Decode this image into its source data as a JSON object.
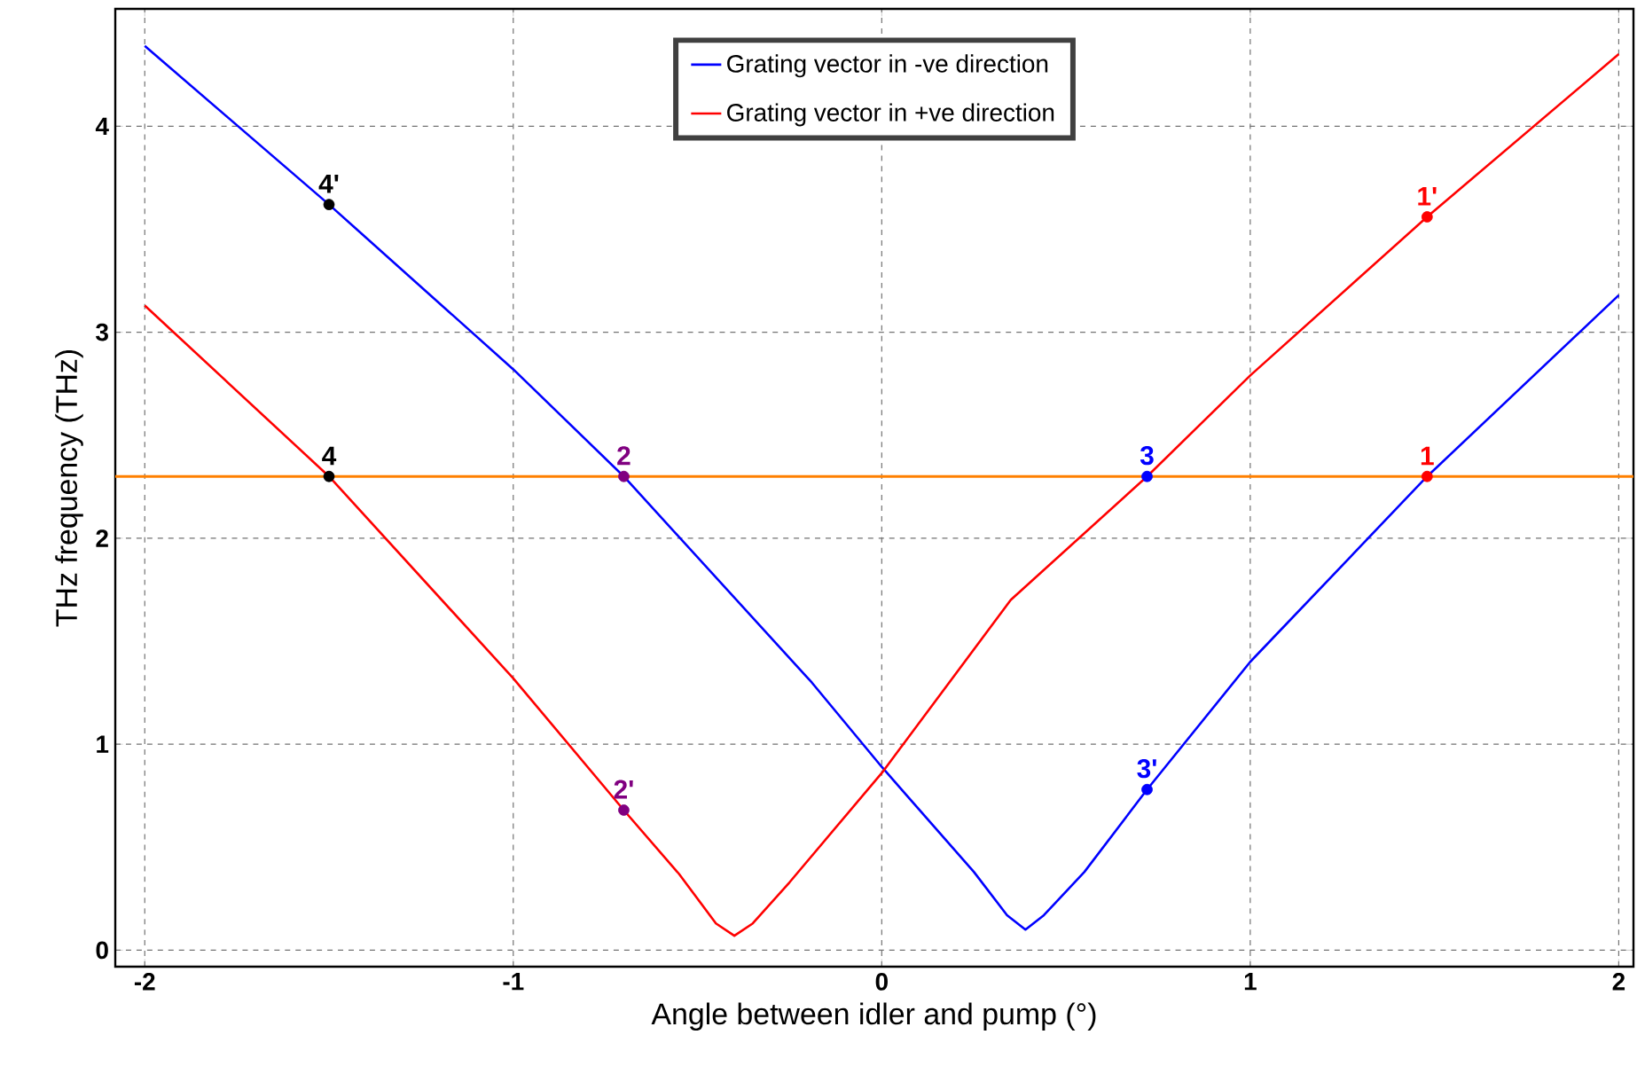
{
  "chart_data": {
    "type": "line",
    "xlabel": "Angle between idler and pump (°)",
    "ylabel": "THz frequency (THz)",
    "xlim": [
      -2.08,
      2.04
    ],
    "ylim": [
      -0.08,
      4.57
    ],
    "xticks": [
      -2,
      -1,
      0,
      1,
      2
    ],
    "yticks": [
      0,
      1,
      2,
      3,
      4
    ],
    "grid": true,
    "legend": "top",
    "series": [
      {
        "name": "Grating vector in -ve direction",
        "color": "#0000ff",
        "marker": "none",
        "x": [
          -2,
          -1.5,
          -1,
          -0.7,
          -0.19,
          0,
          0.25,
          0.34,
          0.39,
          0.44,
          0.55,
          0.72,
          1,
          1.48,
          2
        ],
        "values": [
          4.39,
          3.62,
          2.82,
          2.3,
          1.3,
          0.89,
          0.38,
          0.17,
          0.1,
          0.17,
          0.38,
          0.78,
          1.4,
          2.3,
          3.18
        ]
      },
      {
        "name": "Grating vector in +ve direction",
        "color": "#ff0000",
        "marker": "none",
        "x": [
          -2,
          -1.5,
          -1,
          -0.7,
          -0.55,
          -0.45,
          -0.4,
          -0.35,
          -0.25,
          0,
          0.35,
          0.72,
          1,
          1.48,
          2
        ],
        "values": [
          3.13,
          2.3,
          1.32,
          0.68,
          0.37,
          0.13,
          0.07,
          0.13,
          0.33,
          0.86,
          1.7,
          2.3,
          2.79,
          3.56,
          4.35
        ]
      },
      {
        "type": "scatter",
        "color": "#000000",
        "marker": "circle",
        "x": [
          -1.5,
          -1.5
        ],
        "values": [
          3.62,
          2.3
        ]
      },
      {
        "type": "scatter",
        "color": "#800080",
        "marker": "circle",
        "x": [
          -0.7,
          -0.7
        ],
        "values": [
          2.3,
          0.68
        ]
      },
      {
        "type": "scatter",
        "color": "#0000ff",
        "marker": "circle",
        "x": [
          0.72,
          0.72
        ],
        "values": [
          2.3,
          0.78
        ]
      },
      {
        "type": "scatter",
        "color": "#ff0000",
        "marker": "circle",
        "x": [
          1.48,
          1.48
        ],
        "values": [
          2.3,
          3.56
        ]
      }
    ],
    "annotations": [
      {
        "text": "4'",
        "x": -1.5,
        "y": 3.62
      },
      {
        "text": "4",
        "x": -1.5,
        "y": 2.3
      },
      {
        "text": "2",
        "x": -0.7,
        "y": 2.3
      },
      {
        "text": "2'",
        "x": -0.7,
        "y": 0.68
      },
      {
        "text": "3",
        "x": 0.72,
        "y": 2.3
      },
      {
        "text": "3'",
        "x": 0.72,
        "y": 0.78
      },
      {
        "text": "1",
        "x": 1.48,
        "y": 2.3
      },
      {
        "text": "1'",
        "x": 1.48,
        "y": 3.56
      }
    ],
    "ref_lines": [
      {
        "axis": "y",
        "value": 2.3,
        "color": "#ff8000"
      }
    ]
  }
}
